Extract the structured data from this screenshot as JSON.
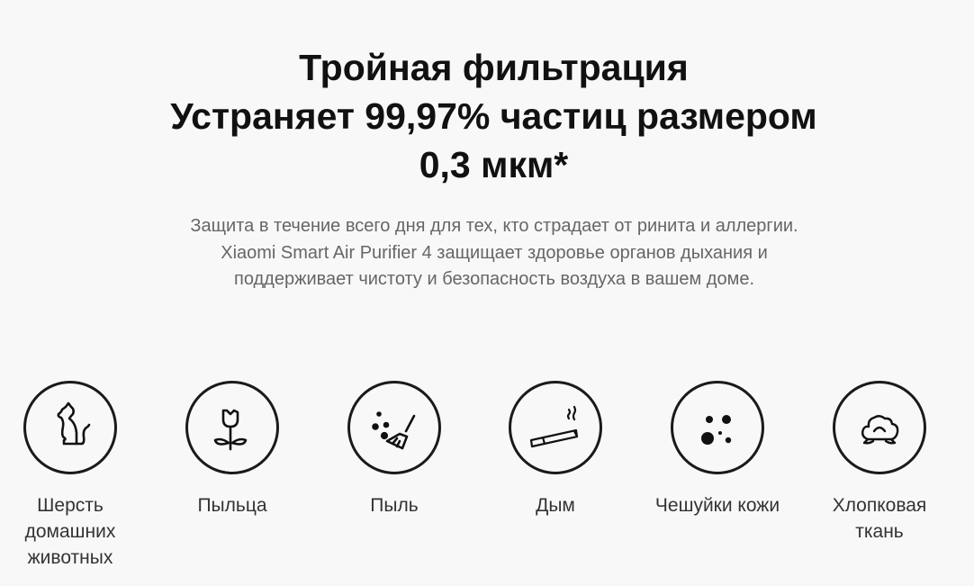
{
  "header": {
    "title_lines": [
      "Тройная фильтрация",
      "Устраняет 99,97% частиц размером",
      "0,3 мкм*"
    ],
    "description": "Защита в течение всего дня для тех, кто страдает от ринита и аллергии. Xiaomi Smart Air Purifier 4 защищает здоровье органов дыхания и поддерживает чистоту и безопасность воздуха в вашем доме."
  },
  "features": [
    {
      "icon": "cat-icon",
      "label": "Шерсть домашних животных"
    },
    {
      "icon": "tulip-icon",
      "label": "Пыльца"
    },
    {
      "icon": "broom-dust-icon",
      "label": "Пыль"
    },
    {
      "icon": "cigarette-icon",
      "label": "Дым"
    },
    {
      "icon": "particles-icon",
      "label": "Чешуйки кожи"
    },
    {
      "icon": "cotton-icon",
      "label": "Хлопковая ткань"
    }
  ]
}
